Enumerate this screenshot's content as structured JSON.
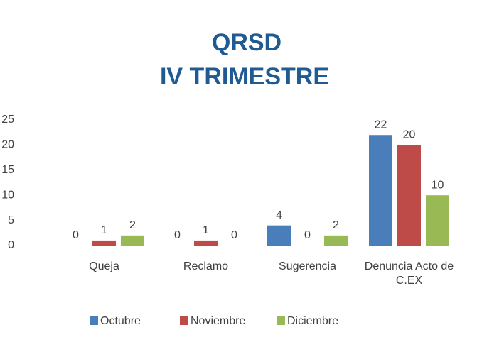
{
  "chart_data": {
    "type": "bar",
    "title": "QRSD",
    "subtitle": "IV TRIMESTRE",
    "categories": [
      "Queja",
      "Reclamo",
      "Sugerencia",
      "Denuncia Acto de C.EX"
    ],
    "series": [
      {
        "name": "Octubre",
        "color": "#4a7ebb",
        "values": [
          0,
          0,
          4,
          22
        ]
      },
      {
        "name": "Noviembre",
        "color": "#be4b48",
        "values": [
          1,
          1,
          0,
          20
        ]
      },
      {
        "name": "Diciembre",
        "color": "#98b954",
        "values": [
          2,
          0,
          2,
          10
        ]
      }
    ],
    "ylim": [
      0,
      25
    ],
    "yticks": [
      0,
      5,
      10,
      15,
      20,
      25
    ],
    "grid": false,
    "legend": "bottom"
  }
}
